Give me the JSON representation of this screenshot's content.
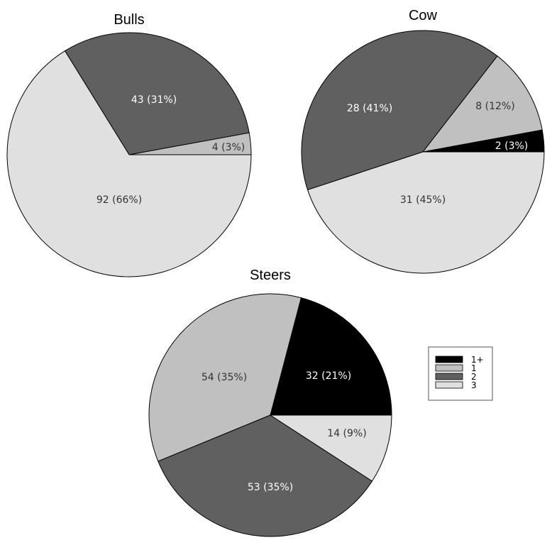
{
  "chart_data": [
    {
      "type": "pie",
      "title": "Bulls",
      "categories": [
        "1+",
        "1",
        "2",
        "3"
      ],
      "values": [
        0,
        4,
        43,
        92
      ],
      "labels": [
        "",
        "4 (3%)",
        "43 (31%)",
        "92 (66%)"
      ]
    },
    {
      "type": "pie",
      "title": "Cow",
      "categories": [
        "1+",
        "1",
        "2",
        "3"
      ],
      "values": [
        2,
        8,
        28,
        31
      ],
      "labels": [
        "2 (3%)",
        "8 (12%)",
        "28 (41%)",
        "31 (45%)"
      ]
    },
    {
      "type": "pie",
      "title": "Steers",
      "categories": [
        "1+",
        "1",
        "2",
        "3"
      ],
      "values": [
        32,
        54,
        53,
        14
      ],
      "labels": [
        "32 (21%)",
        "54 (35%)",
        "53 (35%)",
        "14 (9%)"
      ]
    }
  ],
  "legend": {
    "placement": "right",
    "entries": [
      {
        "label": "1+",
        "color": "#000000"
      },
      {
        "label": "1",
        "color": "#c0c0c0"
      },
      {
        "label": "2",
        "color": "#606060"
      },
      {
        "label": "3",
        "color": "#e0e0e0"
      }
    ]
  },
  "label_colors": {
    "1+": "#ffffff",
    "1": "#333333",
    "2": "#ffffff",
    "3": "#333333"
  }
}
